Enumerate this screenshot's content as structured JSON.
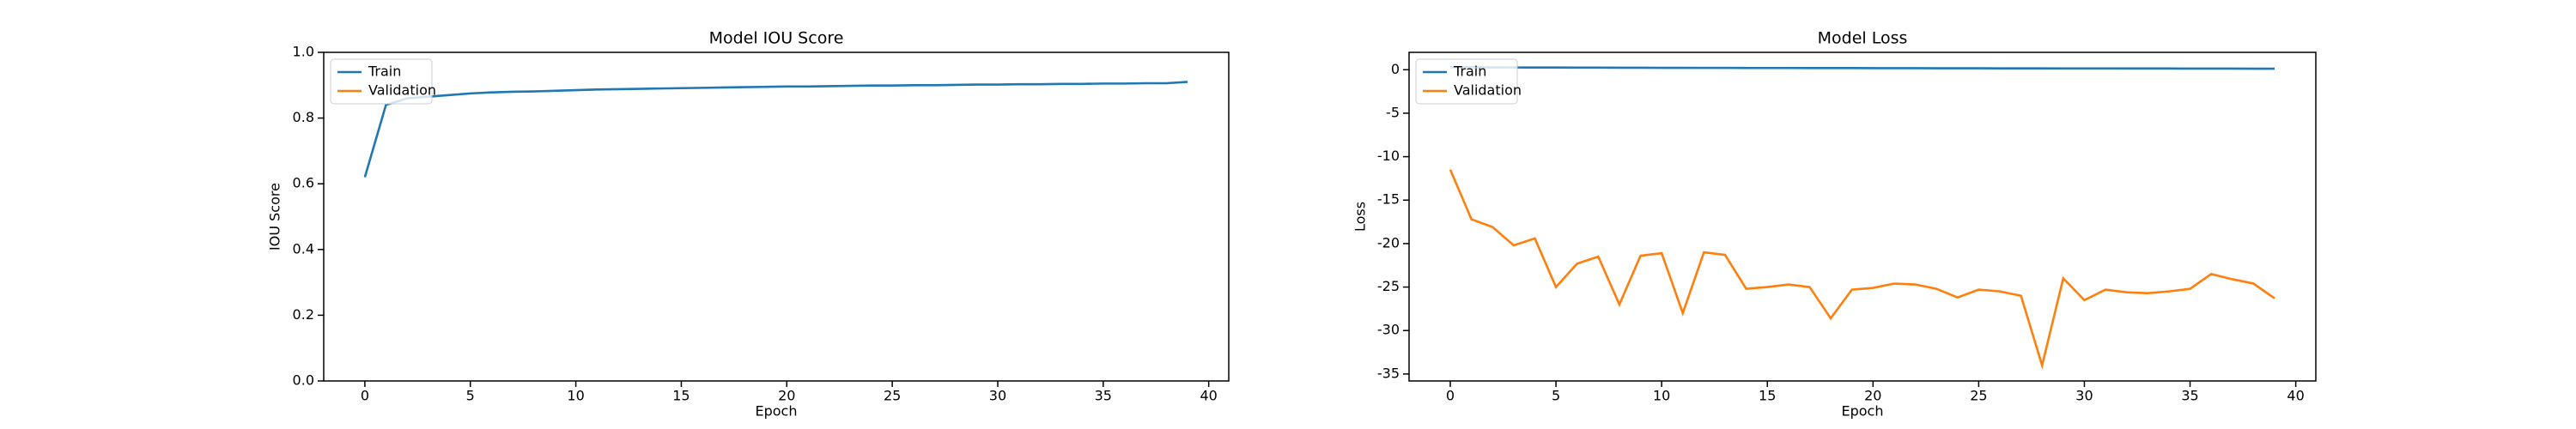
{
  "chart_data": [
    {
      "type": "line",
      "title": "Model IOU Score",
      "xlabel": "Epoch",
      "ylabel": "IOU Score",
      "x": [
        0,
        1,
        2,
        3,
        4,
        5,
        6,
        7,
        8,
        9,
        10,
        11,
        12,
        13,
        14,
        15,
        16,
        17,
        18,
        19,
        20,
        21,
        22,
        23,
        24,
        25,
        26,
        27,
        28,
        29,
        30,
        31,
        32,
        33,
        34,
        35,
        36,
        37,
        38,
        39
      ],
      "series": [
        {
          "name": "Train",
          "color": "#1f77b4",
          "values": [
            0.62,
            0.84,
            0.86,
            0.865,
            0.87,
            0.875,
            0.878,
            0.88,
            0.881,
            0.883,
            0.885,
            0.887,
            0.888,
            0.889,
            0.89,
            0.891,
            0.892,
            0.893,
            0.894,
            0.895,
            0.896,
            0.896,
            0.897,
            0.898,
            0.899,
            0.899,
            0.9,
            0.9,
            0.901,
            0.902,
            0.902,
            0.903,
            0.903,
            0.904,
            0.904,
            0.905,
            0.905,
            0.906,
            0.906,
            0.91
          ]
        },
        {
          "name": "Validation",
          "color": "#ff7f0e",
          "values": [
            null,
            null,
            null,
            null,
            null,
            null,
            null,
            null,
            null,
            null,
            null,
            null,
            null,
            null,
            null,
            null,
            null,
            null,
            null,
            null,
            null,
            null,
            null,
            null,
            null,
            null,
            null,
            null,
            null,
            null,
            null,
            null,
            null,
            null,
            null,
            null,
            null,
            null,
            null,
            null
          ]
        }
      ],
      "xlim": [
        -1.95,
        40.95
      ],
      "xticks": [
        0,
        5,
        10,
        15,
        20,
        25,
        30,
        35,
        40
      ],
      "ylim": [
        0,
        1
      ],
      "yticks": [
        {
          "value": 0,
          "label": "0.0"
        },
        {
          "value": 0.2,
          "label": "0.2"
        },
        {
          "value": 0.4,
          "label": "0.4"
        },
        {
          "value": 0.6,
          "label": "0.6"
        },
        {
          "value": 0.8,
          "label": "0.8"
        },
        {
          "value": 1,
          "label": "1.0"
        }
      ],
      "legend": "upper left"
    },
    {
      "type": "line",
      "title": "Model Loss",
      "xlabel": "Epoch",
      "ylabel": "Loss",
      "x": [
        0,
        1,
        2,
        3,
        4,
        5,
        6,
        7,
        8,
        9,
        10,
        11,
        12,
        13,
        14,
        15,
        16,
        17,
        18,
        19,
        20,
        21,
        22,
        23,
        24,
        25,
        26,
        27,
        28,
        29,
        30,
        31,
        32,
        33,
        34,
        35,
        36,
        37,
        38,
        39
      ],
      "series": [
        {
          "name": "Train",
          "color": "#1f77b4",
          "values": [
            0.3,
            0.28,
            0.27,
            0.26,
            0.25,
            0.25,
            0.24,
            0.24,
            0.23,
            0.23,
            0.22,
            0.22,
            0.21,
            0.21,
            0.2,
            0.2,
            0.2,
            0.19,
            0.19,
            0.19,
            0.18,
            0.18,
            0.18,
            0.17,
            0.17,
            0.17,
            0.16,
            0.16,
            0.16,
            0.15,
            0.15,
            0.15,
            0.14,
            0.14,
            0.14,
            0.13,
            0.13,
            0.13,
            0.12,
            0.12
          ]
        },
        {
          "name": "Validation",
          "color": "#ff7f0e",
          "values": [
            -11.5,
            -17.2,
            -18.1,
            -20.2,
            -19.4,
            -25,
            -22.3,
            -21.5,
            -27,
            -21.4,
            -21.1,
            -28,
            -21,
            -21.3,
            -25.2,
            -25,
            -24.7,
            -25,
            -28.6,
            -25.3,
            -25.1,
            -24.6,
            -24.7,
            -25.2,
            -26.2,
            -25.3,
            -25.5,
            -26,
            -34,
            -24,
            -26.5,
            -25.3,
            -25.6,
            -25.7,
            -25.5,
            -25.2,
            -23.5,
            -24.1,
            -24.6,
            -26.3
          ]
        }
      ],
      "xlim": [
        -1.95,
        40.95
      ],
      "xticks": [
        0,
        5,
        10,
        15,
        20,
        25,
        30,
        35,
        40
      ],
      "ylim": [
        -35.8,
        2.0
      ],
      "yticks": [
        -35,
        -30,
        -25,
        -20,
        -15,
        -10,
        -5,
        0
      ],
      "legend": "upper left"
    }
  ]
}
